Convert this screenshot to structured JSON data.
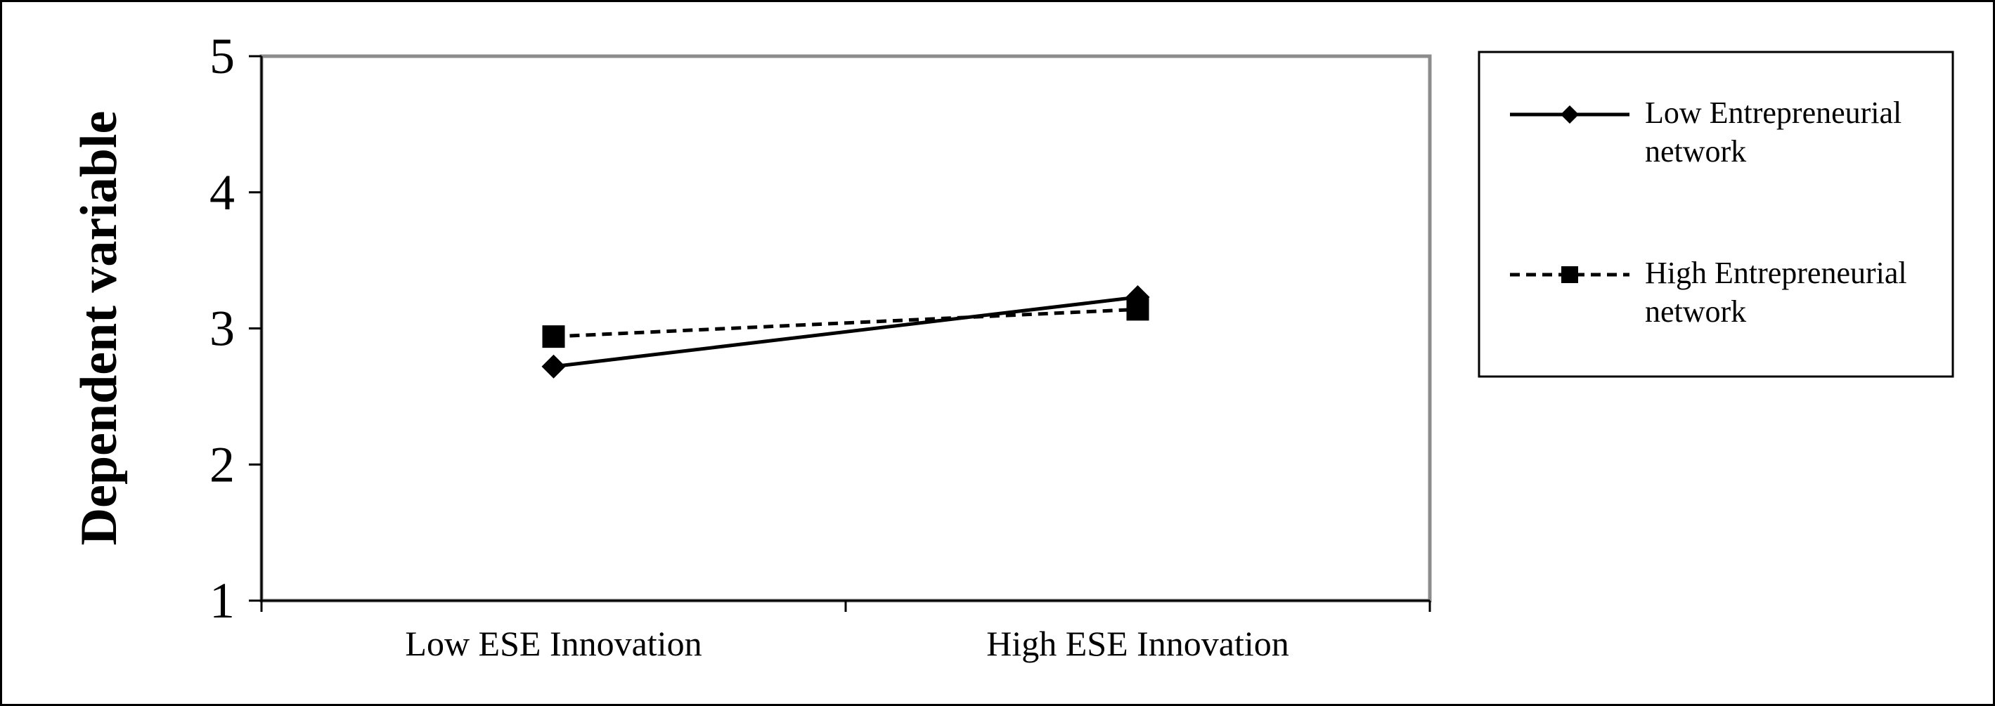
{
  "chart_data": {
    "type": "line",
    "title": "",
    "xlabel": "",
    "ylabel": "Dependent variable",
    "ylim": [
      1,
      5
    ],
    "yticks": [
      "1",
      "2",
      "3",
      "4",
      "5"
    ],
    "categories": [
      "Low ESE Innovation",
      "High ESE Innovation"
    ],
    "grid": false,
    "legend_position": "right",
    "series": [
      {
        "name": "Low Entrepreneurial network",
        "name_lines": [
          "Low Entrepreneurial",
          "network"
        ],
        "values": [
          2.72,
          3.23
        ],
        "marker": "diamond",
        "line_style": "solid",
        "color": "#000000"
      },
      {
        "name": "High Entrepreneurial network",
        "name_lines": [
          "High Entrepreneurial",
          "network"
        ],
        "values": [
          2.94,
          3.14
        ],
        "marker": "square",
        "line_style": "dashed",
        "color": "#000000"
      }
    ]
  }
}
